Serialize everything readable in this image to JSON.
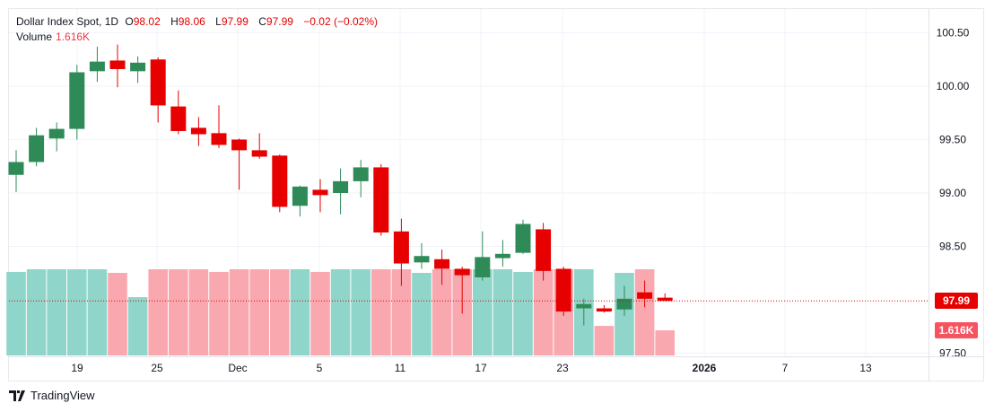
{
  "legend": {
    "symbol": "Dollar Index Spot, 1D",
    "open_label": "O",
    "open": "98.02",
    "high_label": "H",
    "high": "98.06",
    "low_label": "L",
    "low": "97.99",
    "close_label": "C",
    "close": "97.99",
    "change": "−0.02 (−0.02%)"
  },
  "volume_legend": {
    "label": "Volume",
    "value": "1.616K"
  },
  "last_price_tag": "97.99",
  "last_volume_tag": "1.616K",
  "colors": {
    "up": "#2e8b57",
    "down": "#e60000",
    "vol_up": "#8fd5c9",
    "vol_down": "#f9a8b0"
  },
  "logo": "TradingView",
  "chart_data": {
    "type": "candlestick",
    "y_ticks": [
      "100.50",
      "100.00",
      "99.50",
      "99.00",
      "98.50",
      "97.50"
    ],
    "x_ticks": [
      "19",
      "25",
      "Dec",
      "5",
      "11",
      "17",
      "23",
      "2026",
      "7",
      "13"
    ],
    "ylim": [
      97.5,
      100.5
    ],
    "grid": true,
    "candles": [
      [
        99.17,
        99.4,
        99.01,
        99.29
      ],
      [
        99.29,
        99.61,
        99.25,
        99.54
      ],
      [
        99.51,
        99.66,
        99.39,
        99.6
      ],
      [
        99.6,
        100.2,
        99.5,
        100.13
      ],
      [
        100.14,
        100.37,
        100.04,
        100.23
      ],
      [
        100.24,
        100.39,
        99.99,
        100.16
      ],
      [
        100.14,
        100.28,
        100.03,
        100.22
      ],
      [
        100.25,
        100.27,
        99.66,
        99.82
      ],
      [
        99.81,
        99.96,
        99.55,
        99.58
      ],
      [
        99.61,
        99.71,
        99.44,
        99.55
      ],
      [
        99.56,
        99.82,
        99.42,
        99.45
      ],
      [
        99.5,
        99.51,
        99.03,
        99.4
      ],
      [
        99.4,
        99.56,
        99.32,
        99.34
      ],
      [
        99.35,
        99.36,
        98.82,
        98.87
      ],
      [
        98.88,
        99.07,
        98.78,
        99.06
      ],
      [
        99.03,
        99.13,
        98.82,
        98.98
      ],
      [
        99.0,
        99.23,
        98.8,
        99.11
      ],
      [
        99.11,
        99.31,
        98.96,
        99.24
      ],
      [
        99.24,
        99.27,
        98.6,
        98.63
      ],
      [
        98.64,
        98.76,
        98.13,
        98.34
      ],
      [
        98.35,
        98.53,
        98.29,
        98.41
      ],
      [
        98.38,
        98.47,
        98.14,
        98.29
      ],
      [
        98.29,
        98.31,
        97.87,
        98.23
      ],
      [
        98.21,
        98.64,
        98.18,
        98.4
      ],
      [
        98.39,
        98.56,
        98.31,
        98.43
      ],
      [
        98.44,
        98.75,
        98.43,
        98.71
      ],
      [
        98.66,
        98.72,
        98.18,
        98.27
      ],
      [
        98.29,
        98.31,
        97.85,
        97.89
      ],
      [
        97.92,
        98.01,
        97.76,
        97.96
      ],
      [
        97.92,
        97.95,
        97.88,
        97.89
      ],
      [
        97.91,
        98.13,
        97.85,
        98.01
      ],
      [
        98.07,
        98.18,
        97.93,
        98.01
      ],
      [
        98.02,
        98.06,
        97.99,
        97.99
      ]
    ],
    "volume_k": [
      5.37,
      5.54,
      5.54,
      5.54,
      5.54,
      5.31,
      3.75,
      5.54,
      5.54,
      5.54,
      5.37,
      5.54,
      5.54,
      5.54,
      5.54,
      5.37,
      5.54,
      5.54,
      5.54,
      5.54,
      5.31,
      5.54,
      5.54,
      5.54,
      5.54,
      5.37,
      5.54,
      5.54,
      5.54,
      1.9,
      5.31,
      5.54,
      1.616
    ]
  }
}
